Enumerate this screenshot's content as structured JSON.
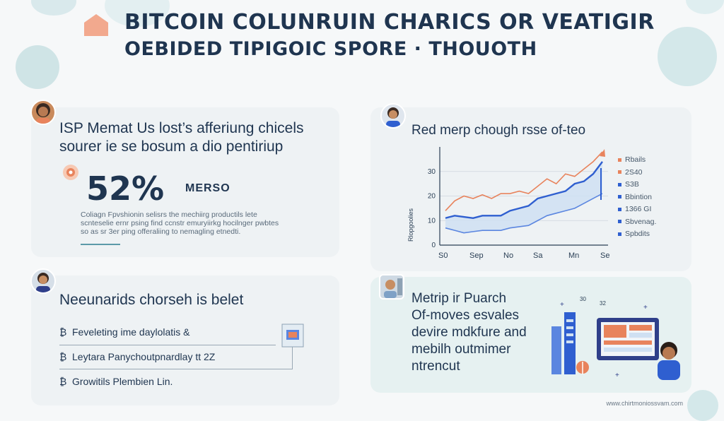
{
  "header": {
    "title_line1": "BITCOIN COLUNRUIN CHARICS OR VEATIGIR",
    "title_line2": "OEBIDED TIPIGOIC SPORE · THOUOTH"
  },
  "card1": {
    "heading_line1": "ISP Memat Us lost’s afferiung chicels",
    "heading_line2": "sourer ie se bosum a dio pentiriup",
    "stat_value": "52%",
    "stat_tag": "MERSO",
    "body_line1": "Coliagn Fpvshionin selisrs the mechiirg productils lete",
    "body_line2": "scnteselie ernr psing find ccnstr emuryiirkg hocilnger pwbtes",
    "body_line3": "so as sr 3er ping offeraliing to nemagling etnedti."
  },
  "card2": {
    "heading": "Red merp chough rsse of-teo",
    "legend": [
      "Rbails",
      "2S40",
      "S3B",
      "Bbintion",
      "1366 GI",
      "Sbvenag.",
      "Spbdits"
    ],
    "legend_colors": [
      "#e8835c",
      "#e8835c",
      "#2f5fd0",
      "#2f5fd0",
      "#2f5fd0",
      "#2f5fd0",
      "#2f5fd0"
    ],
    "ylabel": "Rlopgoolies"
  },
  "card3": {
    "heading": "Neeunarids chorseh is belet",
    "items": [
      "Feveleting ime daylolatis &",
      "Leytara Panychoutpnardlay tt 2Z",
      "Growitils Plembien Lin."
    ]
  },
  "card4": {
    "line1": "Metrip ir Puarch",
    "line2": "Of-moves esvales",
    "line3": "devire mdkfure and",
    "line4": "mebilh outmimer",
    "line5": "ntrencut"
  },
  "footer": {
    "text": "www.chirtmoniossvam.com"
  },
  "chart_data": {
    "type": "line",
    "title": "Red merp chough rsse of-teo",
    "ylabel": "Rlopgoolies",
    "xlabel": "",
    "x_tick_labels": [
      "S0",
      "Sep",
      "No",
      "Sa",
      "Mn",
      "Se"
    ],
    "y_ticks": [
      0,
      10,
      20,
      30
    ],
    "ylim": [
      0,
      40
    ],
    "grid": true,
    "series": [
      {
        "name": "Rbails",
        "color": "#e8835c",
        "values": [
          14,
          18,
          20,
          19,
          20.5,
          19,
          21,
          21,
          22,
          21,
          24,
          27,
          25,
          29,
          28,
          31,
          34,
          38
        ]
      },
      {
        "name": "S3B",
        "color": "#2f5fd0",
        "values": [
          11,
          12,
          11.5,
          11,
          12,
          12,
          12,
          14,
          15,
          16,
          19,
          20,
          21,
          22,
          25,
          26,
          29,
          34
        ]
      },
      {
        "name": "Bbintion",
        "color": "#5b86e0",
        "values": [
          7,
          6,
          5,
          5.5,
          6,
          6,
          6,
          7,
          7.5,
          8,
          10,
          12,
          13,
          14,
          15,
          17,
          19,
          21
        ]
      }
    ]
  },
  "colors": {
    "primary": "#1f3550",
    "orange": "#e8835c",
    "blue": "#2f5fd0",
    "area": "#cfe0f2"
  }
}
